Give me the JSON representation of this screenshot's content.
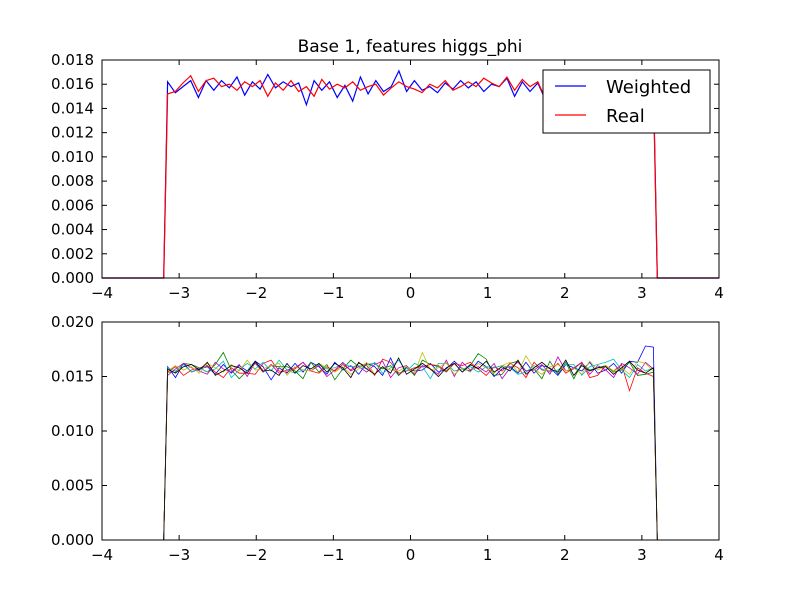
{
  "chart_data": [
    {
      "type": "line",
      "title": "Base 1, features higgs_phi",
      "xlabel": "",
      "ylabel": "",
      "xlim": [
        -4,
        4
      ],
      "ylim": [
        0,
        0.018
      ],
      "xticks": [
        -4,
        -3,
        -2,
        -1,
        0,
        1,
        2,
        3,
        4
      ],
      "xtick_labels": [
        "−4",
        "−3",
        "−2",
        "−1",
        "0",
        "1",
        "2",
        "3",
        "4"
      ],
      "yticks": [
        0,
        0.002,
        0.004,
        0.006,
        0.008,
        0.01,
        0.012,
        0.014,
        0.016,
        0.018
      ],
      "ytick_labels": [
        "0.000",
        "0.002",
        "0.004",
        "0.006",
        "0.008",
        "0.010",
        "0.012",
        "0.014",
        "0.016",
        "0.018"
      ],
      "legend": {
        "position": "top-right",
        "entries": [
          "Weighted",
          "Real"
        ]
      },
      "series": [
        {
          "name": "Weighted",
          "color": "#0000ff",
          "x": [
            -4.0,
            -3.2,
            -3.15,
            -3.05,
            -2.95,
            -2.85,
            -2.75,
            -2.65,
            -2.55,
            -2.45,
            -2.35,
            -2.25,
            -2.15,
            -2.05,
            -1.95,
            -1.85,
            -1.75,
            -1.65,
            -1.55,
            -1.45,
            -1.35,
            -1.25,
            -1.15,
            -1.05,
            -0.95,
            -0.85,
            -0.75,
            -0.65,
            -0.55,
            -0.45,
            -0.35,
            -0.25,
            -0.15,
            -0.05,
            0.05,
            0.15,
            0.25,
            0.35,
            0.45,
            0.55,
            0.65,
            0.75,
            0.85,
            0.95,
            1.05,
            1.15,
            1.25,
            1.35,
            1.45,
            1.55,
            1.65,
            1.75,
            1.85,
            1.95,
            2.05,
            2.15,
            2.25,
            2.35,
            2.45,
            2.55,
            2.65,
            2.75,
            2.85,
            2.95,
            3.05,
            3.15,
            3.2,
            4.0
          ],
          "y": [
            0.0,
            0.0,
            0.0162,
            0.0153,
            0.0158,
            0.0163,
            0.0149,
            0.0163,
            0.0155,
            0.0163,
            0.0157,
            0.0166,
            0.0151,
            0.0162,
            0.0156,
            0.0168,
            0.0157,
            0.0162,
            0.0158,
            0.0161,
            0.0143,
            0.0163,
            0.0155,
            0.0162,
            0.0149,
            0.0159,
            0.0146,
            0.0166,
            0.0152,
            0.0163,
            0.0154,
            0.0158,
            0.0171,
            0.0154,
            0.0163,
            0.0155,
            0.0158,
            0.0153,
            0.0161,
            0.0156,
            0.0163,
            0.0157,
            0.0162,
            0.0154,
            0.016,
            0.0158,
            0.0165,
            0.015,
            0.0162,
            0.0154,
            0.0161,
            0.0147,
            0.0163,
            0.0151,
            0.0165,
            0.0153,
            0.016,
            0.0149,
            0.0162,
            0.0155,
            0.0164,
            0.015,
            0.0161,
            0.0157,
            0.0163,
            0.0163,
            0.0,
            0.0
          ]
        },
        {
          "name": "Real",
          "color": "#ff0000",
          "x": [
            -4.0,
            -3.2,
            -3.15,
            -3.05,
            -2.95,
            -2.85,
            -2.75,
            -2.65,
            -2.55,
            -2.45,
            -2.35,
            -2.25,
            -2.15,
            -2.05,
            -1.95,
            -1.85,
            -1.75,
            -1.65,
            -1.55,
            -1.45,
            -1.35,
            -1.25,
            -1.15,
            -1.05,
            -0.95,
            -0.85,
            -0.75,
            -0.65,
            -0.55,
            -0.45,
            -0.35,
            -0.25,
            -0.15,
            -0.05,
            0.05,
            0.15,
            0.25,
            0.35,
            0.45,
            0.55,
            0.65,
            0.75,
            0.85,
            0.95,
            1.05,
            1.15,
            1.25,
            1.35,
            1.45,
            1.55,
            1.65,
            1.75,
            1.85,
            1.95,
            2.05,
            2.15,
            2.25,
            2.35,
            2.45,
            2.55,
            2.65,
            2.75,
            2.85,
            2.95,
            3.05,
            3.15,
            3.2,
            4.0
          ],
          "y": [
            0.0,
            0.0,
            0.0152,
            0.0154,
            0.0161,
            0.0167,
            0.0154,
            0.0163,
            0.0165,
            0.0158,
            0.016,
            0.0155,
            0.0162,
            0.0158,
            0.0163,
            0.015,
            0.0161,
            0.0155,
            0.0163,
            0.0154,
            0.0158,
            0.015,
            0.0164,
            0.0156,
            0.016,
            0.0157,
            0.0162,
            0.0155,
            0.0158,
            0.016,
            0.0151,
            0.0157,
            0.0162,
            0.0158,
            0.0156,
            0.0153,
            0.016,
            0.0157,
            0.0163,
            0.0155,
            0.0158,
            0.0162,
            0.0158,
            0.0165,
            0.0161,
            0.0158,
            0.0166,
            0.0155,
            0.0164,
            0.0158,
            0.0162,
            0.0148,
            0.0157,
            0.0163,
            0.0158,
            0.0156,
            0.0162,
            0.0156,
            0.016,
            0.0152,
            0.0157,
            0.0161,
            0.0155,
            0.0159,
            0.0156,
            0.0156,
            0.0,
            0.0
          ]
        }
      ]
    },
    {
      "type": "line",
      "title": "",
      "xlabel": "",
      "ylabel": "",
      "xlim": [
        -4,
        4
      ],
      "ylim": [
        0,
        0.02
      ],
      "xticks": [
        -4,
        -3,
        -2,
        -1,
        0,
        1,
        2,
        3,
        4
      ],
      "xtick_labels": [
        "−4",
        "−3",
        "−2",
        "−1",
        "0",
        "1",
        "2",
        "3",
        "4"
      ],
      "yticks": [
        0,
        0.005,
        0.01,
        0.015,
        0.02
      ],
      "ytick_labels": [
        "0.000",
        "0.005",
        "0.010",
        "0.015",
        "0.020"
      ],
      "support": [
        -3.15,
        3.15
      ],
      "series": [
        {
          "color": "#0000ff",
          "y": [
            0.0159,
            0.0149,
            0.0162,
            0.0154,
            0.0157,
            0.0159,
            0.0152,
            0.0161,
            0.0153,
            0.016,
            0.0155,
            0.0164,
            0.0159,
            0.0147,
            0.0158,
            0.0153,
            0.0162,
            0.0154,
            0.0163,
            0.0159,
            0.0152,
            0.0163,
            0.0156,
            0.016,
            0.0152,
            0.0162,
            0.0159,
            0.0151,
            0.0167,
            0.0151,
            0.0158,
            0.0155,
            0.0156,
            0.0162,
            0.0154,
            0.0157,
            0.0164,
            0.0157,
            0.0155,
            0.0164,
            0.0159,
            0.015,
            0.0157,
            0.0159,
            0.0153,
            0.0163,
            0.0153,
            0.016,
            0.0158,
            0.0151,
            0.0161,
            0.0158,
            0.0155,
            0.0163,
            0.0153,
            0.0156,
            0.0162,
            0.0153,
            0.0164,
            0.0163,
            0.0178,
            0.0177
          ]
        },
        {
          "color": "#008000",
          "y": [
            0.0154,
            0.0154,
            0.0162,
            0.0161,
            0.0158,
            0.0154,
            0.0161,
            0.0172,
            0.0156,
            0.0148,
            0.0155,
            0.0162,
            0.0154,
            0.016,
            0.0159,
            0.0159,
            0.0155,
            0.0148,
            0.0163,
            0.0154,
            0.0161,
            0.0147,
            0.0157,
            0.0165,
            0.0159,
            0.0161,
            0.0162,
            0.0157,
            0.016,
            0.0151,
            0.0159,
            0.0151,
            0.0165,
            0.0161,
            0.0159,
            0.0154,
            0.0162,
            0.0154,
            0.016,
            0.0171,
            0.0166,
            0.0151,
            0.0152,
            0.0162,
            0.0164,
            0.0155,
            0.0157,
            0.0148,
            0.0164,
            0.0152,
            0.0163,
            0.0148,
            0.0162,
            0.0156,
            0.0158,
            0.016,
            0.0154,
            0.0156,
            0.0163,
            0.0151,
            0.0152,
            0.0154
          ]
        },
        {
          "color": "#ff0000",
          "y": [
            0.0154,
            0.0159,
            0.0151,
            0.0156,
            0.0158,
            0.016,
            0.0154,
            0.0149,
            0.0158,
            0.0153,
            0.0153,
            0.0152,
            0.0162,
            0.0165,
            0.0155,
            0.0154,
            0.0157,
            0.0163,
            0.0155,
            0.0153,
            0.0159,
            0.0155,
            0.0161,
            0.0156,
            0.0162,
            0.016,
            0.0151,
            0.0166,
            0.0163,
            0.0153,
            0.0155,
            0.0158,
            0.0159,
            0.0161,
            0.016,
            0.0155,
            0.0162,
            0.016,
            0.0163,
            0.0157,
            0.0151,
            0.0159,
            0.0155,
            0.0162,
            0.0158,
            0.0149,
            0.0163,
            0.0156,
            0.0155,
            0.0162,
            0.0153,
            0.0158,
            0.0163,
            0.0149,
            0.0151,
            0.016,
            0.0155,
            0.0161,
            0.0137,
            0.0158,
            0.0153,
            0.015
          ]
        },
        {
          "color": "#00bfbf",
          "y": [
            0.0158,
            0.0155,
            0.0161,
            0.0154,
            0.0158,
            0.0154,
            0.0157,
            0.0164,
            0.0149,
            0.0156,
            0.0162,
            0.0157,
            0.0163,
            0.0155,
            0.0165,
            0.0156,
            0.0153,
            0.0156,
            0.0155,
            0.0161,
            0.0157,
            0.0158,
            0.0162,
            0.0159,
            0.016,
            0.0157,
            0.0163,
            0.0153,
            0.0158,
            0.0165,
            0.0155,
            0.0162,
            0.0159,
            0.0148,
            0.0162,
            0.0162,
            0.0155,
            0.0157,
            0.0159,
            0.0154,
            0.0159,
            0.0158,
            0.016,
            0.0158,
            0.0152,
            0.0154,
            0.016,
            0.0157,
            0.0154,
            0.0156,
            0.0161,
            0.0161,
            0.0151,
            0.0159,
            0.0161,
            0.0163,
            0.0166,
            0.0156,
            0.0149,
            0.0161,
            0.0155,
            0.0158
          ]
        },
        {
          "color": "#bf00bf",
          "y": [
            0.0151,
            0.0157,
            0.0162,
            0.0158,
            0.0155,
            0.0152,
            0.0163,
            0.0157,
            0.0154,
            0.0161,
            0.015,
            0.0163,
            0.0154,
            0.0161,
            0.0153,
            0.0156,
            0.0158,
            0.0163,
            0.0155,
            0.016,
            0.015,
            0.0156,
            0.0163,
            0.0155,
            0.0159,
            0.0154,
            0.0161,
            0.0164,
            0.0149,
            0.0158,
            0.016,
            0.0152,
            0.016,
            0.0157,
            0.0152,
            0.0165,
            0.015,
            0.0163,
            0.0156,
            0.0159,
            0.0154,
            0.0162,
            0.0148,
            0.0158,
            0.0163,
            0.0155,
            0.0156,
            0.0161,
            0.0152,
            0.0168,
            0.0155,
            0.0157,
            0.0163,
            0.0152,
            0.016,
            0.0156,
            0.0149,
            0.0162,
            0.0158,
            0.0152,
            0.0163,
            0.0157
          ]
        },
        {
          "color": "#bfbf00",
          "y": [
            0.0155,
            0.016,
            0.0156,
            0.0159,
            0.0153,
            0.0162,
            0.0158,
            0.0154,
            0.0161,
            0.0155,
            0.0165,
            0.0156,
            0.0157,
            0.016,
            0.0162,
            0.0151,
            0.0159,
            0.0156,
            0.0155,
            0.0162,
            0.0158,
            0.0154,
            0.0159,
            0.0152,
            0.0157,
            0.0163,
            0.0152,
            0.0159,
            0.0156,
            0.0155,
            0.0159,
            0.0153,
            0.0172,
            0.0156,
            0.0158,
            0.0163,
            0.0152,
            0.0158,
            0.0154,
            0.0162,
            0.0158,
            0.0153,
            0.016,
            0.0163,
            0.0154,
            0.0169,
            0.0157,
            0.0152,
            0.0159,
            0.0161,
            0.0155,
            0.0158,
            0.0152,
            0.0164,
            0.0156,
            0.016,
            0.0155,
            0.0158,
            0.0152,
            0.0164,
            0.0162,
            0.0155
          ]
        },
        {
          "color": "#000000",
          "y": [
            0.0157,
            0.0153,
            0.0159,
            0.0161,
            0.0156,
            0.0163,
            0.0151,
            0.0155,
            0.016,
            0.0158,
            0.0153,
            0.0164,
            0.0155,
            0.0156,
            0.0151,
            0.0162,
            0.0153,
            0.016,
            0.0157,
            0.0162,
            0.0154,
            0.0162,
            0.0158,
            0.0149,
            0.0163,
            0.0157,
            0.0152,
            0.0159,
            0.0153,
            0.0167,
            0.0152,
            0.0157,
            0.0162,
            0.0157,
            0.015,
            0.0158,
            0.0162,
            0.0154,
            0.0161,
            0.0157,
            0.0164,
            0.0154,
            0.0159,
            0.0155,
            0.0165,
            0.0152,
            0.0158,
            0.0163,
            0.0157,
            0.0154,
            0.0165,
            0.0151,
            0.016,
            0.0155,
            0.0158,
            0.0159,
            0.0152,
            0.0158,
            0.0164,
            0.0156,
            0.0153,
            0.0158
          ]
        }
      ]
    }
  ]
}
